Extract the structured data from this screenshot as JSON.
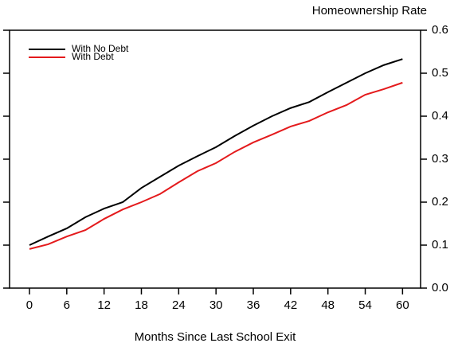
{
  "chart_data": {
    "type": "line",
    "y_axis_label": "Homeownership Rate",
    "x_axis_label": "Months Since Last School Exit",
    "x": [
      0,
      3,
      6,
      9,
      12,
      15,
      18,
      21,
      24,
      27,
      30,
      33,
      36,
      39,
      42,
      45,
      48,
      51,
      54,
      57,
      60
    ],
    "series": [
      {
        "name": "With No Debt",
        "color": "#000000",
        "values": [
          0.1,
          0.12,
          0.139,
          0.165,
          0.185,
          0.2,
          0.233,
          0.259,
          0.285,
          0.307,
          0.328,
          0.354,
          0.378,
          0.4,
          0.419,
          0.433,
          0.456,
          0.478,
          0.5,
          0.519,
          0.533
        ]
      },
      {
        "name": "With Debt",
        "color": "#e41a1c",
        "values": [
          0.091,
          0.102,
          0.12,
          0.135,
          0.161,
          0.183,
          0.2,
          0.219,
          0.246,
          0.272,
          0.291,
          0.317,
          0.339,
          0.357,
          0.376,
          0.389,
          0.409,
          0.426,
          0.45,
          0.463,
          0.478
        ]
      }
    ],
    "xlim": [
      -3.2,
      62.9
    ],
    "xticks": [
      0,
      6,
      12,
      18,
      24,
      30,
      36,
      42,
      48,
      54,
      60
    ],
    "ylim": [
      0,
      0.6
    ],
    "yticks": [
      {
        "value": 0,
        "label": "0.0"
      },
      0.1,
      0.2,
      0.3,
      0.4,
      0.5,
      0.6
    ],
    "y_axis_side": "right",
    "legend_position": "upper-left"
  }
}
